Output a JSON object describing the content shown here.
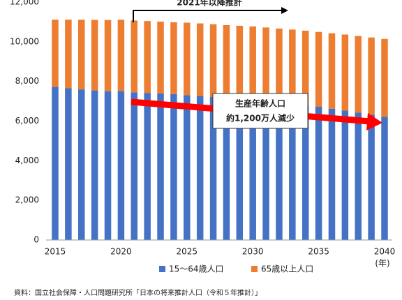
{
  "chart_data": {
    "type": "stacked_bar",
    "categories": [
      "2015",
      null,
      null,
      null,
      null,
      "2020",
      null,
      null,
      null,
      null,
      "2025",
      null,
      null,
      null,
      null,
      "2030",
      null,
      null,
      null,
      null,
      "2035",
      null,
      null,
      null,
      null,
      "2040"
    ],
    "series": [
      {
        "name": "15～64歳人口",
        "color": "#4472c4",
        "values": [
          7728,
          7656,
          7596,
          7545,
          7507,
          7509,
          7450,
          7421,
          7395,
          7359,
          7310,
          7265,
          7216,
          7164,
          7118,
          7076,
          7011,
          6940,
          6870,
          6794,
          6722,
          6627,
          6530,
          6424,
          6320,
          6213
        ]
      },
      {
        "name": "65歳以上人口",
        "color": "#ed7d31",
        "values": [
          3387,
          3459,
          3515,
          3558,
          3589,
          3603,
          3621,
          3624,
          3623,
          3625,
          3653,
          3661,
          3667,
          3675,
          3688,
          3696,
          3709,
          3726,
          3745,
          3764,
          3773,
          3801,
          3834,
          3866,
          3896,
          3929
        ]
      }
    ],
    "ylim": [
      0,
      12000
    ],
    "yticks": [
      0,
      {
        "value": 2000,
        "label": "2,000"
      },
      {
        "value": 4000,
        "label": "4,000"
      },
      {
        "value": 6000,
        "label": "6,000"
      },
      {
        "value": 8000,
        "label": "8,000"
      },
      {
        "value": 10000,
        "label": "10,000"
      },
      {
        "value": 12000,
        "label": "12,000"
      }
    ],
    "x_unit": "(年)",
    "annotations": {
      "forecast": "2021年以降推計",
      "callout": [
        "生産年齢人口",
        "約1,200万人減少"
      ]
    },
    "source": "資料：国立社会保障・人口問題研究所「日本の将来推計人口（令和５年推計）」",
    "legend": "bottom"
  }
}
